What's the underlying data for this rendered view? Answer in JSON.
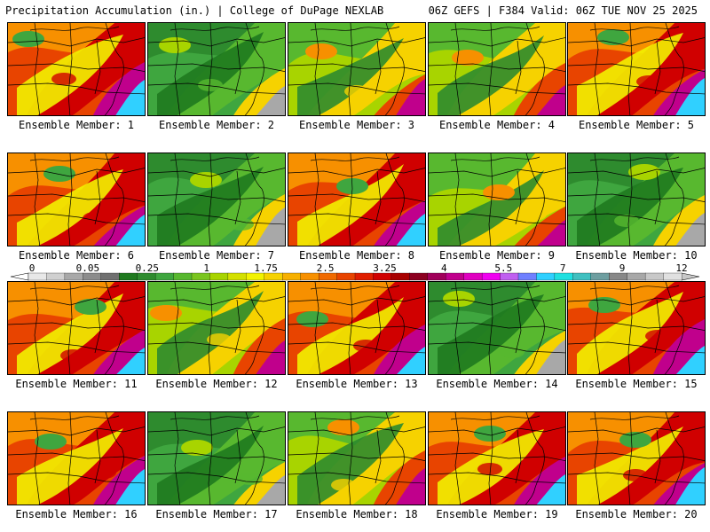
{
  "header": {
    "title": "Precipitation Accumulation (in.) | College of DuPage NEXLAB",
    "run_info": "06Z GEFS | F384 Valid: 06Z TUE NOV 25 2025"
  },
  "members": [
    {
      "label": "Ensemble Member: 1",
      "scheme": "wet"
    },
    {
      "label": "Ensemble Member: 2",
      "scheme": "dry"
    },
    {
      "label": "Ensemble Member: 3",
      "scheme": "moderate"
    },
    {
      "label": "Ensemble Member: 4",
      "scheme": "moderate"
    },
    {
      "label": "Ensemble Member: 5",
      "scheme": "wet"
    },
    {
      "label": "Ensemble Member: 6",
      "scheme": "wet"
    },
    {
      "label": "Ensemble Member: 7",
      "scheme": "dry"
    },
    {
      "label": "Ensemble Member: 8",
      "scheme": "wet"
    },
    {
      "label": "Ensemble Member: 9",
      "scheme": "moderate"
    },
    {
      "label": "Ensemble Member: 10",
      "scheme": "dry"
    },
    {
      "label": "Ensemble Member: 11",
      "scheme": "wet"
    },
    {
      "label": "Ensemble Member: 12",
      "scheme": "moderate"
    },
    {
      "label": "Ensemble Member: 13",
      "scheme": "wet"
    },
    {
      "label": "Ensemble Member: 14",
      "scheme": "dry"
    },
    {
      "label": "Ensemble Member: 15",
      "scheme": "wet"
    },
    {
      "label": "Ensemble Member: 16",
      "scheme": "wet"
    },
    {
      "label": "Ensemble Member: 17",
      "scheme": "dry"
    },
    {
      "label": "Ensemble Member: 18",
      "scheme": "moderate"
    },
    {
      "label": "Ensemble Member: 19",
      "scheme": "wet"
    },
    {
      "label": "Ensemble Member: 20",
      "scheme": "wet"
    }
  ],
  "colorbar": {
    "labels": [
      "0",
      "0.05",
      "0.25",
      "1",
      "1.75",
      "2.5",
      "3.25",
      "4",
      "5.5",
      "7",
      "9",
      "12"
    ],
    "colors": [
      "#e8e8e8",
      "#d0d0d0",
      "#a8a8a8",
      "#8c8c8c",
      "#707070",
      "#1f7a1f",
      "#2e8b2e",
      "#3fa63f",
      "#58b82f",
      "#7ac51f",
      "#a8d400",
      "#d4e000",
      "#f2f200",
      "#f6d200",
      "#f7b000",
      "#f79000",
      "#f06a00",
      "#e84400",
      "#e01e00",
      "#d00000",
      "#a80000",
      "#8c0020",
      "#a0005a",
      "#c0008c",
      "#e000c0",
      "#f000f0",
      "#c060f0",
      "#7080ff",
      "#30d0ff",
      "#20e0e0",
      "#40c0c0",
      "#6e9ea0",
      "#888888",
      "#a8a8a8",
      "#c8c8c8",
      "#e0e0e0"
    ]
  }
}
